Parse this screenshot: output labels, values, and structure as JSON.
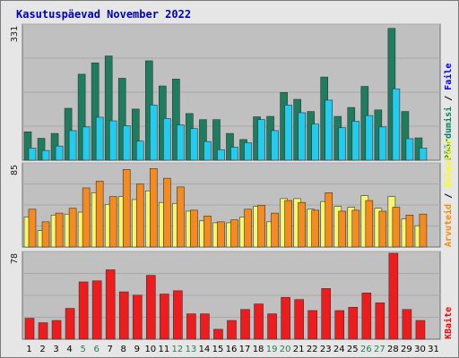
{
  "title": "Kasutuspäevad November 2022",
  "chart_data": [
    {
      "type": "bar",
      "panel": "top",
      "ymax_label": "331",
      "ylim": [
        0,
        331
      ],
      "grid": true,
      "legend": [
        {
          "name": "Pöördumisi",
          "color": "#00805c"
        },
        {
          "name": "Faile",
          "color": "#0000ff"
        }
      ],
      "categories": [
        "1",
        "2",
        "3",
        "4",
        "5",
        "6",
        "7",
        "8",
        "9",
        "10",
        "11",
        "12",
        "13",
        "14",
        "15",
        "16",
        "17",
        "18",
        "19",
        "20",
        "21",
        "22",
        "23",
        "24",
        "25",
        "26",
        "27",
        "28",
        "29",
        "30",
        "31"
      ],
      "series": [
        {
          "name": "Pöördumisi",
          "color": "#1e7d5e",
          "values": [
            70,
            54,
            66,
            128,
            212,
            240,
            257,
            202,
            126,
            245,
            183,
            200,
            115,
            100,
            100,
            66,
            51,
            107,
            108,
            167,
            150,
            120,
            205,
            108,
            130,
            182,
            124,
            325,
            120,
            55,
            0
          ]
        },
        {
          "name": "Faile",
          "color": "#22ccee",
          "values": [
            30,
            24,
            35,
            73,
            82,
            106,
            97,
            85,
            47,
            136,
            103,
            87,
            78,
            46,
            26,
            32,
            43,
            100,
            73,
            136,
            117,
            89,
            148,
            80,
            96,
            110,
            82,
            176,
            53,
            30,
            0
          ]
        }
      ]
    },
    {
      "type": "bar",
      "panel": "middle",
      "ymax_label": "85",
      "ylim": [
        0,
        85
      ],
      "grid": true,
      "legend": [
        {
          "name": "Arvuteid",
          "color": "#ff8800"
        },
        {
          "name": "Külastusi",
          "color": "#ffff00"
        }
      ],
      "categories": [
        "1",
        "2",
        "3",
        "4",
        "5",
        "6",
        "7",
        "8",
        "9",
        "10",
        "11",
        "12",
        "13",
        "14",
        "15",
        "16",
        "17",
        "18",
        "19",
        "20",
        "21",
        "22",
        "23",
        "24",
        "25",
        "26",
        "27",
        "28",
        "29",
        "30",
        "31"
      ],
      "series": [
        {
          "name": "Külastusi",
          "color": "#f7f76e",
          "values": [
            31,
            17,
            33,
            34,
            36,
            56,
            44,
            52,
            49,
            58,
            46,
            45,
            37,
            27,
            25,
            25,
            31,
            42,
            26,
            50,
            50,
            39,
            47,
            42,
            41,
            53,
            40,
            52,
            29,
            22,
            0
          ]
        },
        {
          "name": "Arvuteid",
          "color": "#f58a1f",
          "values": [
            39,
            26,
            35,
            40,
            61,
            68,
            52,
            80,
            65,
            81,
            71,
            62,
            38,
            32,
            26,
            28,
            39,
            43,
            35,
            48,
            46,
            38,
            56,
            37,
            38,
            48,
            37,
            41,
            33,
            34,
            0
          ]
        }
      ]
    },
    {
      "type": "bar",
      "panel": "bottom",
      "ymax_label": "78",
      "ylim": [
        0,
        78
      ],
      "grid": true,
      "legend": [
        {
          "name": "KBaite",
          "color": "#ff0000"
        }
      ],
      "categories": [
        "1",
        "2",
        "3",
        "4",
        "5",
        "6",
        "7",
        "8",
        "9",
        "10",
        "11",
        "12",
        "13",
        "14",
        "15",
        "16",
        "17",
        "18",
        "19",
        "20",
        "21",
        "22",
        "23",
        "24",
        "25",
        "26",
        "27",
        "28",
        "29",
        "30",
        "31"
      ],
      "series": [
        {
          "name": "KBaite",
          "color": "#ee1c1c",
          "values": [
            19,
            15,
            17,
            28,
            52,
            53,
            63,
            43,
            40,
            58,
            41,
            44,
            23,
            23,
            9,
            17,
            27,
            32,
            23,
            38,
            36,
            26,
            46,
            26,
            29,
            42,
            33,
            78,
            27,
            17,
            0
          ]
        }
      ]
    }
  ],
  "x_labels": [
    {
      "text": "1",
      "color": "#000000"
    },
    {
      "text": "2",
      "color": "#000000"
    },
    {
      "text": "3",
      "color": "#000000"
    },
    {
      "text": "4",
      "color": "#000000"
    },
    {
      "text": "5",
      "color": "#1e7d5e"
    },
    {
      "text": "6",
      "color": "#1e7d5e"
    },
    {
      "text": "7",
      "color": "#000000"
    },
    {
      "text": "8",
      "color": "#000000"
    },
    {
      "text": "9",
      "color": "#000000"
    },
    {
      "text": "10",
      "color": "#000000"
    },
    {
      "text": "11",
      "color": "#000000"
    },
    {
      "text": "12",
      "color": "#1e7d5e"
    },
    {
      "text": "13",
      "color": "#1e7d5e"
    },
    {
      "text": "14",
      "color": "#000000"
    },
    {
      "text": "15",
      "color": "#000000"
    },
    {
      "text": "16",
      "color": "#000000"
    },
    {
      "text": "17",
      "color": "#000000"
    },
    {
      "text": "18",
      "color": "#000000"
    },
    {
      "text": "19",
      "color": "#1e7d5e"
    },
    {
      "text": "20",
      "color": "#1e7d5e"
    },
    {
      "text": "21",
      "color": "#000000"
    },
    {
      "text": "22",
      "color": "#000000"
    },
    {
      "text": "23",
      "color": "#000000"
    },
    {
      "text": "24",
      "color": "#000000"
    },
    {
      "text": "25",
      "color": "#000000"
    },
    {
      "text": "26",
      "color": "#1e7d5e"
    },
    {
      "text": "27",
      "color": "#1e7d5e"
    },
    {
      "text": "28",
      "color": "#000000"
    },
    {
      "text": "29",
      "color": "#000000"
    },
    {
      "text": "30",
      "color": "#000000"
    },
    {
      "text": "31",
      "color": "#000000"
    }
  ],
  "colors": {
    "plot_bg": "#c0c0c0",
    "frame_bg": "#e6e6e6",
    "title": "#0000bb",
    "gridline": "#a9a9a9"
  }
}
